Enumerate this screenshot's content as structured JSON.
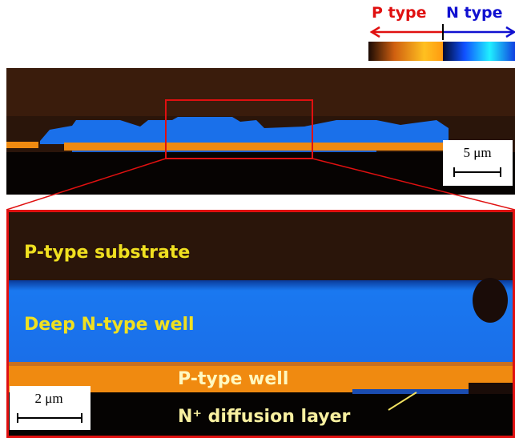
{
  "legend": {
    "p_label": "P type",
    "n_label": "N type"
  },
  "overview": {
    "scale_bar": "5 μm"
  },
  "zoom": {
    "scale_bar": "2 μm",
    "labels": [
      "P-type substrate",
      "Deep N-type well",
      "P-type well",
      "N⁺ diffusion layer"
    ]
  }
}
